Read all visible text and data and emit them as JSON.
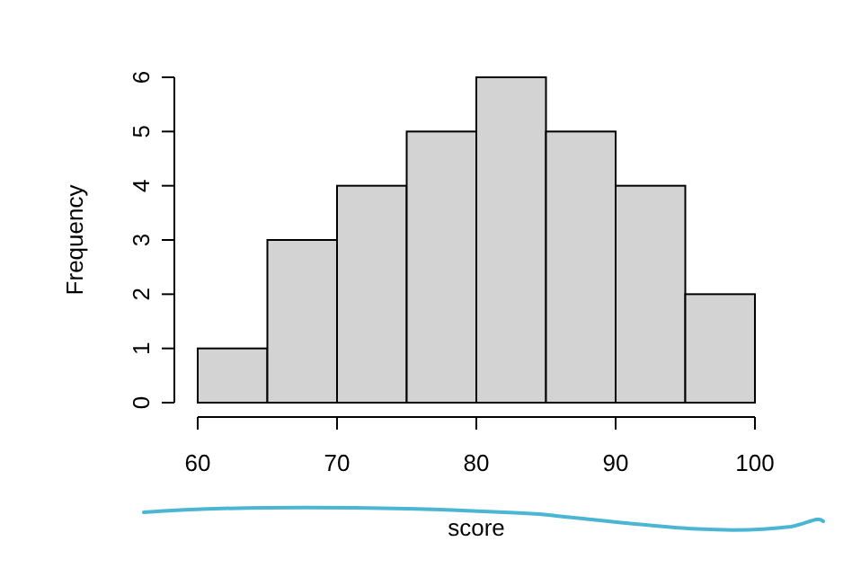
{
  "chart_data": {
    "type": "histogram",
    "xlabel": "score",
    "ylabel": "Frequency",
    "bins": [
      60,
      65,
      70,
      75,
      80,
      85,
      90,
      95,
      100
    ],
    "values": [
      1,
      3,
      4,
      5,
      6,
      5,
      4,
      2
    ],
    "color": "#d3d3d3",
    "xlim": [
      60,
      100
    ],
    "xticks": [
      60,
      70,
      80,
      90,
      100
    ],
    "ylim": [
      0,
      6
    ],
    "yticks": [
      0,
      1,
      2,
      3,
      4,
      5,
      6
    ],
    "grid": false
  }
}
